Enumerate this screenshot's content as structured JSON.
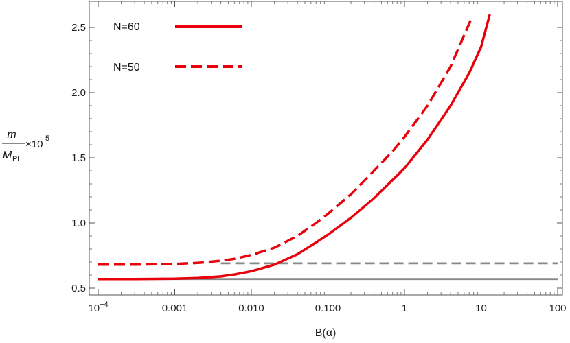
{
  "chart_data": {
    "type": "line",
    "title": "",
    "xlabel": "B(α)",
    "ylabel": {
      "numerator": "m",
      "denominator_base": "M",
      "denominator_sub": "Pl",
      "factor": "×10",
      "exponent": "5"
    },
    "x_scale": "log",
    "xlim": [
      0.0001,
      100
    ],
    "ylim": [
      0.5,
      2.6
    ],
    "x_ticks": [
      {
        "value": 0.0001,
        "base": "10",
        "exp": "−4"
      },
      {
        "value": 0.001,
        "label": "0.001"
      },
      {
        "value": 0.01,
        "label": "0.010"
      },
      {
        "value": 0.1,
        "label": "0.100"
      },
      {
        "value": 1,
        "label": "1"
      },
      {
        "value": 10,
        "label": "10"
      },
      {
        "value": 100,
        "label": "100"
      }
    ],
    "y_ticks": [
      {
        "value": 0.5,
        "label": "0.5"
      },
      {
        "value": 1.0,
        "label": "1.0"
      },
      {
        "value": 1.5,
        "label": "1.5"
      },
      {
        "value": 2.0,
        "label": "2.0"
      },
      {
        "value": 2.5,
        "label": "2.5"
      }
    ],
    "grid": false,
    "legend_position": "top-left",
    "series": [
      {
        "name": "N=60",
        "color": "#e8000b",
        "dash": "solid",
        "x": [
          0.0001,
          0.0003,
          0.001,
          0.002,
          0.004,
          0.006,
          0.01,
          0.02,
          0.04,
          0.07,
          0.1,
          0.2,
          0.4,
          0.7,
          1,
          2,
          4,
          7,
          10,
          13
        ],
        "y": [
          0.57,
          0.57,
          0.572,
          0.578,
          0.59,
          0.605,
          0.63,
          0.68,
          0.76,
          0.85,
          0.91,
          1.04,
          1.19,
          1.33,
          1.42,
          1.64,
          1.9,
          2.15,
          2.35,
          2.6
        ]
      },
      {
        "name": "N=50",
        "color": "#e8000b",
        "dash": "dashed",
        "x": [
          0.0001,
          0.0003,
          0.001,
          0.002,
          0.004,
          0.006,
          0.01,
          0.02,
          0.04,
          0.07,
          0.1,
          0.2,
          0.4,
          0.7,
          1,
          2,
          4,
          7.5
        ],
        "y": [
          0.68,
          0.68,
          0.685,
          0.693,
          0.71,
          0.725,
          0.755,
          0.81,
          0.9,
          1.0,
          1.07,
          1.22,
          1.4,
          1.55,
          1.66,
          1.9,
          2.2,
          2.57
        ]
      },
      {
        "name": "",
        "color": "#888888",
        "dash": "solid",
        "x": [
          0.0001,
          100
        ],
        "y": [
          0.57,
          0.57
        ]
      },
      {
        "name": "",
        "color": "#888888",
        "dash": "dashed",
        "x": [
          0.004,
          100
        ],
        "y": [
          0.69,
          0.69
        ]
      }
    ]
  }
}
